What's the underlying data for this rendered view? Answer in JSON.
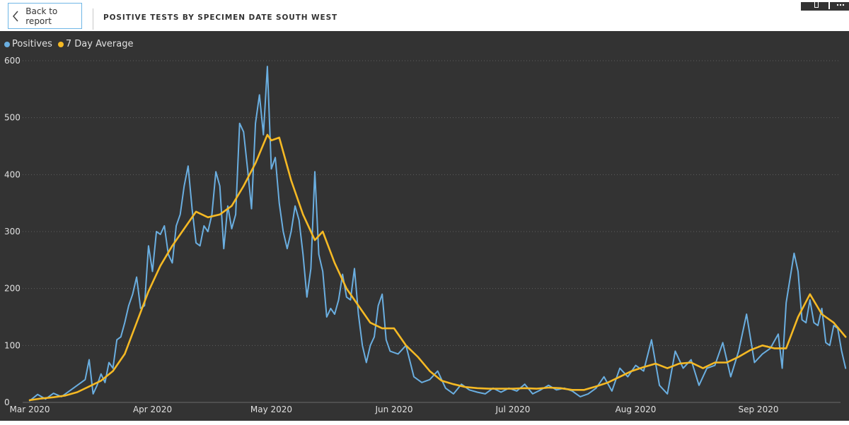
{
  "nav": {
    "back_label": "Back to report"
  },
  "header": {
    "title": "POSITIVE TESTS BY SPECIMEN DATE SOUTH WEST"
  },
  "colors": {
    "positives": "#6aaee0",
    "average": "#f5b924",
    "background": "#333333",
    "grid": "#5f5f5f",
    "text": "#e0e0e0"
  },
  "chart_data": {
    "type": "line",
    "title": "",
    "xlabel": "",
    "ylabel": "",
    "ylim": [
      0,
      600
    ],
    "yticks": [
      0,
      100,
      200,
      300,
      400,
      500,
      600
    ],
    "grid": true,
    "legend_position": "top-left",
    "x_start": "2020-03-01",
    "x_end": "2020-09-15",
    "xticks": [
      {
        "date": "2020-03-01",
        "label": "Mar 2020"
      },
      {
        "date": "2020-04-01",
        "label": "Apr 2020"
      },
      {
        "date": "2020-05-01",
        "label": "May 2020"
      },
      {
        "date": "2020-06-01",
        "label": "Jun 2020"
      },
      {
        "date": "2020-07-01",
        "label": "Jul 2020"
      },
      {
        "date": "2020-08-01",
        "label": "Aug 2020"
      },
      {
        "date": "2020-09-01",
        "label": "Sep 2020"
      }
    ],
    "series": [
      {
        "name": "Positives",
        "color": "#6aaee0",
        "points": [
          [
            "2020-03-01",
            3
          ],
          [
            "2020-03-03",
            14
          ],
          [
            "2020-03-05",
            6
          ],
          [
            "2020-03-07",
            16
          ],
          [
            "2020-03-09",
            10
          ],
          [
            "2020-03-11",
            20
          ],
          [
            "2020-03-13",
            30
          ],
          [
            "2020-03-15",
            40
          ],
          [
            "2020-03-16",
            75
          ],
          [
            "2020-03-17",
            15
          ],
          [
            "2020-03-18",
            30
          ],
          [
            "2020-03-19",
            50
          ],
          [
            "2020-03-20",
            35
          ],
          [
            "2020-03-21",
            70
          ],
          [
            "2020-03-22",
            60
          ],
          [
            "2020-03-23",
            110
          ],
          [
            "2020-03-24",
            115
          ],
          [
            "2020-03-25",
            140
          ],
          [
            "2020-03-26",
            170
          ],
          [
            "2020-03-27",
            190
          ],
          [
            "2020-03-28",
            220
          ],
          [
            "2020-03-29",
            165
          ],
          [
            "2020-03-30",
            170
          ],
          [
            "2020-03-31",
            275
          ],
          [
            "2020-04-01",
            230
          ],
          [
            "2020-04-02",
            300
          ],
          [
            "2020-04-03",
            295
          ],
          [
            "2020-04-04",
            310
          ],
          [
            "2020-04-05",
            260
          ],
          [
            "2020-04-06",
            245
          ],
          [
            "2020-04-07",
            310
          ],
          [
            "2020-04-08",
            330
          ],
          [
            "2020-04-09",
            380
          ],
          [
            "2020-04-10",
            415
          ],
          [
            "2020-04-11",
            340
          ],
          [
            "2020-04-12",
            280
          ],
          [
            "2020-04-13",
            275
          ],
          [
            "2020-04-14",
            310
          ],
          [
            "2020-04-15",
            300
          ],
          [
            "2020-04-16",
            330
          ],
          [
            "2020-04-17",
            405
          ],
          [
            "2020-04-18",
            380
          ],
          [
            "2020-04-19",
            270
          ],
          [
            "2020-04-20",
            345
          ],
          [
            "2020-04-21",
            305
          ],
          [
            "2020-04-22",
            330
          ],
          [
            "2020-04-23",
            490
          ],
          [
            "2020-04-24",
            475
          ],
          [
            "2020-04-25",
            410
          ],
          [
            "2020-04-26",
            340
          ],
          [
            "2020-04-27",
            490
          ],
          [
            "2020-04-28",
            540
          ],
          [
            "2020-04-29",
            470
          ],
          [
            "2020-04-30",
            590
          ],
          [
            "2020-05-01",
            410
          ],
          [
            "2020-05-02",
            430
          ],
          [
            "2020-05-03",
            350
          ],
          [
            "2020-05-04",
            300
          ],
          [
            "2020-05-05",
            270
          ],
          [
            "2020-05-06",
            300
          ],
          [
            "2020-05-07",
            345
          ],
          [
            "2020-05-08",
            320
          ],
          [
            "2020-05-09",
            260
          ],
          [
            "2020-05-10",
            185
          ],
          [
            "2020-05-11",
            235
          ],
          [
            "2020-05-12",
            405
          ],
          [
            "2020-05-13",
            260
          ],
          [
            "2020-05-14",
            230
          ],
          [
            "2020-05-15",
            150
          ],
          [
            "2020-05-16",
            165
          ],
          [
            "2020-05-17",
            155
          ],
          [
            "2020-05-18",
            180
          ],
          [
            "2020-05-19",
            225
          ],
          [
            "2020-05-20",
            185
          ],
          [
            "2020-05-21",
            180
          ],
          [
            "2020-05-22",
            235
          ],
          [
            "2020-05-23",
            155
          ],
          [
            "2020-05-24",
            100
          ],
          [
            "2020-05-25",
            70
          ],
          [
            "2020-05-26",
            100
          ],
          [
            "2020-05-27",
            115
          ],
          [
            "2020-05-28",
            170
          ],
          [
            "2020-05-29",
            190
          ],
          [
            "2020-05-30",
            110
          ],
          [
            "2020-05-31",
            90
          ],
          [
            "2020-06-02",
            85
          ],
          [
            "2020-06-04",
            100
          ],
          [
            "2020-06-06",
            45
          ],
          [
            "2020-06-08",
            35
          ],
          [
            "2020-06-10",
            40
          ],
          [
            "2020-06-12",
            55
          ],
          [
            "2020-06-14",
            25
          ],
          [
            "2020-06-16",
            15
          ],
          [
            "2020-06-18",
            32
          ],
          [
            "2020-06-20",
            22
          ],
          [
            "2020-06-22",
            18
          ],
          [
            "2020-06-24",
            15
          ],
          [
            "2020-06-26",
            25
          ],
          [
            "2020-06-28",
            18
          ],
          [
            "2020-06-30",
            25
          ],
          [
            "2020-07-02",
            20
          ],
          [
            "2020-07-04",
            32
          ],
          [
            "2020-07-06",
            15
          ],
          [
            "2020-07-08",
            22
          ],
          [
            "2020-07-10",
            30
          ],
          [
            "2020-07-12",
            22
          ],
          [
            "2020-07-14",
            25
          ],
          [
            "2020-07-16",
            20
          ],
          [
            "2020-07-18",
            10
          ],
          [
            "2020-07-20",
            15
          ],
          [
            "2020-07-22",
            25
          ],
          [
            "2020-07-24",
            45
          ],
          [
            "2020-07-26",
            20
          ],
          [
            "2020-07-28",
            60
          ],
          [
            "2020-07-30",
            45
          ],
          [
            "2020-08-01",
            65
          ],
          [
            "2020-08-03",
            55
          ],
          [
            "2020-08-05",
            110
          ],
          [
            "2020-08-07",
            30
          ],
          [
            "2020-08-09",
            15
          ],
          [
            "2020-08-11",
            90
          ],
          [
            "2020-08-13",
            60
          ],
          [
            "2020-08-15",
            75
          ],
          [
            "2020-08-17",
            30
          ],
          [
            "2020-08-19",
            60
          ],
          [
            "2020-08-21",
            65
          ],
          [
            "2020-08-23",
            105
          ],
          [
            "2020-08-25",
            45
          ],
          [
            "2020-08-27",
            90
          ],
          [
            "2020-08-29",
            155
          ],
          [
            "2020-08-31",
            70
          ],
          [
            "2020-09-02",
            85
          ],
          [
            "2020-09-04",
            95
          ],
          [
            "2020-09-06",
            120
          ],
          [
            "2020-09-07",
            60
          ],
          [
            "2020-09-08",
            175
          ],
          [
            "2020-09-10",
            262
          ],
          [
            "2020-09-11",
            230
          ],
          [
            "2020-09-12",
            145
          ],
          [
            "2020-09-13",
            140
          ],
          [
            "2020-09-14",
            180
          ],
          [
            "2020-09-15",
            140
          ],
          [
            "2020-09-16",
            135
          ],
          [
            "2020-09-17",
            165
          ],
          [
            "2020-09-18",
            105
          ],
          [
            "2020-09-19",
            100
          ],
          [
            "2020-09-20",
            135
          ],
          [
            "2020-09-21",
            130
          ],
          [
            "2020-09-22",
            90
          ],
          [
            "2020-09-23",
            60
          ]
        ]
      },
      {
        "name": "7 Day Average",
        "color": "#f5b924",
        "points": [
          [
            "2020-03-01",
            4
          ],
          [
            "2020-03-04",
            7
          ],
          [
            "2020-03-07",
            9
          ],
          [
            "2020-03-10",
            12
          ],
          [
            "2020-03-13",
            18
          ],
          [
            "2020-03-16",
            28
          ],
          [
            "2020-03-19",
            38
          ],
          [
            "2020-03-22",
            55
          ],
          [
            "2020-03-25",
            85
          ],
          [
            "2020-03-28",
            140
          ],
          [
            "2020-03-31",
            195
          ],
          [
            "2020-04-03",
            240
          ],
          [
            "2020-04-06",
            275
          ],
          [
            "2020-04-09",
            305
          ],
          [
            "2020-04-12",
            335
          ],
          [
            "2020-04-15",
            325
          ],
          [
            "2020-04-18",
            330
          ],
          [
            "2020-04-21",
            345
          ],
          [
            "2020-04-24",
            380
          ],
          [
            "2020-04-27",
            420
          ],
          [
            "2020-04-30",
            470
          ],
          [
            "2020-05-01",
            460
          ],
          [
            "2020-05-03",
            465
          ],
          [
            "2020-05-06",
            390
          ],
          [
            "2020-05-09",
            330
          ],
          [
            "2020-05-12",
            285
          ],
          [
            "2020-05-14",
            300
          ],
          [
            "2020-05-17",
            245
          ],
          [
            "2020-05-20",
            200
          ],
          [
            "2020-05-23",
            170
          ],
          [
            "2020-05-26",
            140
          ],
          [
            "2020-05-29",
            130
          ],
          [
            "2020-06-01",
            130
          ],
          [
            "2020-06-04",
            100
          ],
          [
            "2020-06-07",
            80
          ],
          [
            "2020-06-10",
            55
          ],
          [
            "2020-06-13",
            38
          ],
          [
            "2020-06-16",
            32
          ],
          [
            "2020-06-19",
            27
          ],
          [
            "2020-06-22",
            25
          ],
          [
            "2020-06-25",
            24
          ],
          [
            "2020-06-28",
            24
          ],
          [
            "2020-07-01",
            24
          ],
          [
            "2020-07-04",
            25
          ],
          [
            "2020-07-07",
            24
          ],
          [
            "2020-07-10",
            26
          ],
          [
            "2020-07-13",
            25
          ],
          [
            "2020-07-16",
            22
          ],
          [
            "2020-07-19",
            22
          ],
          [
            "2020-07-22",
            28
          ],
          [
            "2020-07-25",
            35
          ],
          [
            "2020-07-28",
            45
          ],
          [
            "2020-07-31",
            55
          ],
          [
            "2020-08-03",
            62
          ],
          [
            "2020-08-06",
            68
          ],
          [
            "2020-08-09",
            60
          ],
          [
            "2020-08-12",
            68
          ],
          [
            "2020-08-15",
            70
          ],
          [
            "2020-08-18",
            60
          ],
          [
            "2020-08-21",
            70
          ],
          [
            "2020-08-24",
            70
          ],
          [
            "2020-08-27",
            80
          ],
          [
            "2020-08-30",
            92
          ],
          [
            "2020-09-02",
            100
          ],
          [
            "2020-09-05",
            95
          ],
          [
            "2020-09-08",
            95
          ],
          [
            "2020-09-11",
            150
          ],
          [
            "2020-09-14",
            190
          ],
          [
            "2020-09-17",
            155
          ],
          [
            "2020-09-20",
            140
          ],
          [
            "2020-09-23",
            115
          ]
        ]
      }
    ]
  }
}
